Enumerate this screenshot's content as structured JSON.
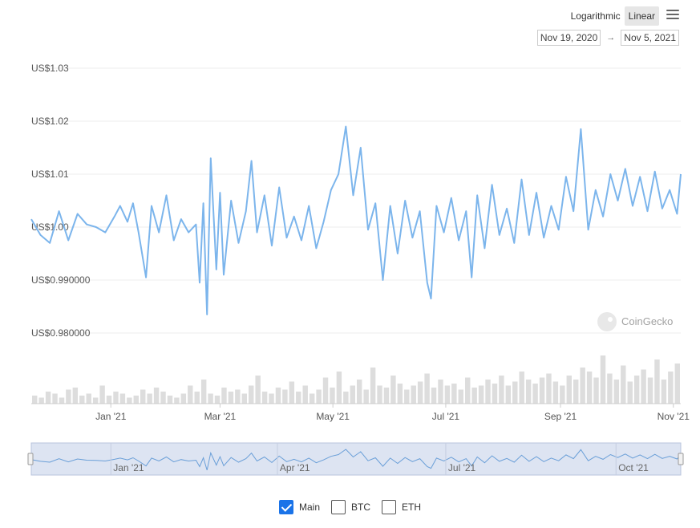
{
  "toolbar": {
    "scale_log_label": "Logarithmic",
    "scale_linear_label": "Linear",
    "active_scale": "linear",
    "menu_icon": "hamburger-menu-icon",
    "date_from": "Nov 19, 2020",
    "date_arrow": "→",
    "date_to": "Nov 5, 2021"
  },
  "watermark": "CoinGecko",
  "legend": [
    {
      "label": "Main",
      "checked": true
    },
    {
      "label": "BTC",
      "checked": false
    },
    {
      "label": "ETH",
      "checked": false
    }
  ],
  "chart_data": {
    "type": "line",
    "x_range": [
      "2020-11-19",
      "2021-11-05"
    ],
    "y_ticks": [
      {
        "value": 0.98,
        "label": "US$0.980000"
      },
      {
        "value": 0.99,
        "label": "US$0.990000"
      },
      {
        "value": 1.0,
        "label": "US$1.00"
      },
      {
        "value": 1.01,
        "label": "US$1.01"
      },
      {
        "value": 1.02,
        "label": "US$1.02"
      },
      {
        "value": 1.03,
        "label": "US$1.03"
      }
    ],
    "ylim": [
      0.98,
      1.03
    ],
    "x_ticks": [
      {
        "date": "2021-01-01",
        "label": "Jan '21"
      },
      {
        "date": "2021-03-01",
        "label": "Mar '21"
      },
      {
        "date": "2021-05-01",
        "label": "May '21"
      },
      {
        "date": "2021-07-01",
        "label": "Jul '21"
      },
      {
        "date": "2021-09-01",
        "label": "Sep '21"
      },
      {
        "date": "2021-11-01",
        "label": "Nov '21"
      }
    ],
    "navigator_ticks": [
      {
        "date": "2021-01-01",
        "label": "Jan '21"
      },
      {
        "date": "2021-04-01",
        "label": "Apr '21"
      },
      {
        "date": "2021-07-01",
        "label": "Jul '21"
      },
      {
        "date": "2021-10-01",
        "label": "Oct '21"
      }
    ],
    "series": [
      {
        "color": "#7cb5ec",
        "points": [
          [
            "2020-11-19",
            1.0015
          ],
          [
            "2020-11-24",
            0.9985
          ],
          [
            "2020-11-29",
            0.997
          ],
          [
            "2020-12-04",
            1.003
          ],
          [
            "2020-12-09",
            0.9975
          ],
          [
            "2020-12-14",
            1.0025
          ],
          [
            "2020-12-19",
            1.0005
          ],
          [
            "2020-12-24",
            1.0
          ],
          [
            "2020-12-29",
            0.999
          ],
          [
            "2021-01-03",
            1.002
          ],
          [
            "2021-01-06",
            1.004
          ],
          [
            "2021-01-10",
            1.001
          ],
          [
            "2021-01-13",
            1.0045
          ],
          [
            "2021-01-16",
            0.999
          ],
          [
            "2021-01-20",
            0.9905
          ],
          [
            "2021-01-23",
            1.004
          ],
          [
            "2021-01-27",
            0.999
          ],
          [
            "2021-01-31",
            1.006
          ],
          [
            "2021-02-04",
            0.9975
          ],
          [
            "2021-02-08",
            1.0015
          ],
          [
            "2021-02-12",
            0.999
          ],
          [
            "2021-02-16",
            1.0005
          ],
          [
            "2021-02-18",
            0.9895
          ],
          [
            "2021-02-20",
            1.0045
          ],
          [
            "2021-02-22",
            0.9835
          ],
          [
            "2021-02-24",
            1.013
          ],
          [
            "2021-02-27",
            0.992
          ],
          [
            "2021-03-01",
            1.0065
          ],
          [
            "2021-03-03",
            0.991
          ],
          [
            "2021-03-07",
            1.005
          ],
          [
            "2021-03-11",
            0.997
          ],
          [
            "2021-03-15",
            1.003
          ],
          [
            "2021-03-18",
            1.0125
          ],
          [
            "2021-03-21",
            0.999
          ],
          [
            "2021-03-25",
            1.006
          ],
          [
            "2021-03-29",
            0.9965
          ],
          [
            "2021-04-02",
            1.0075
          ],
          [
            "2021-04-06",
            0.998
          ],
          [
            "2021-04-10",
            1.002
          ],
          [
            "2021-04-14",
            0.9975
          ],
          [
            "2021-04-18",
            1.004
          ],
          [
            "2021-04-22",
            0.996
          ],
          [
            "2021-04-26",
            1.001
          ],
          [
            "2021-04-30",
            1.007
          ],
          [
            "2021-05-04",
            1.01
          ],
          [
            "2021-05-08",
            1.019
          ],
          [
            "2021-05-12",
            1.006
          ],
          [
            "2021-05-16",
            1.015
          ],
          [
            "2021-05-20",
            0.9995
          ],
          [
            "2021-05-24",
            1.0045
          ],
          [
            "2021-05-28",
            0.99
          ],
          [
            "2021-06-01",
            1.004
          ],
          [
            "2021-06-05",
            0.995
          ],
          [
            "2021-06-09",
            1.005
          ],
          [
            "2021-06-13",
            0.998
          ],
          [
            "2021-06-17",
            1.003
          ],
          [
            "2021-06-21",
            0.9895
          ],
          [
            "2021-06-23",
            0.9865
          ],
          [
            "2021-06-26",
            1.004
          ],
          [
            "2021-06-30",
            0.999
          ],
          [
            "2021-07-04",
            1.0055
          ],
          [
            "2021-07-08",
            0.9975
          ],
          [
            "2021-07-12",
            1.003
          ],
          [
            "2021-07-15",
            0.9905
          ],
          [
            "2021-07-18",
            1.006
          ],
          [
            "2021-07-22",
            0.996
          ],
          [
            "2021-07-26",
            1.008
          ],
          [
            "2021-07-30",
            0.9985
          ],
          [
            "2021-08-03",
            1.0035
          ],
          [
            "2021-08-07",
            0.997
          ],
          [
            "2021-08-11",
            1.009
          ],
          [
            "2021-08-15",
            0.9985
          ],
          [
            "2021-08-19",
            1.0065
          ],
          [
            "2021-08-23",
            0.998
          ],
          [
            "2021-08-27",
            1.004
          ],
          [
            "2021-08-31",
            0.9995
          ],
          [
            "2021-09-04",
            1.0095
          ],
          [
            "2021-09-08",
            1.003
          ],
          [
            "2021-09-12",
            1.0185
          ],
          [
            "2021-09-16",
            0.9995
          ],
          [
            "2021-09-20",
            1.007
          ],
          [
            "2021-09-24",
            1.002
          ],
          [
            "2021-09-28",
            1.01
          ],
          [
            "2021-10-02",
            1.005
          ],
          [
            "2021-10-06",
            1.011
          ],
          [
            "2021-10-10",
            1.004
          ],
          [
            "2021-10-14",
            1.0095
          ],
          [
            "2021-10-18",
            1.003
          ],
          [
            "2021-10-22",
            1.0105
          ],
          [
            "2021-10-26",
            1.0035
          ],
          [
            "2021-10-30",
            1.007
          ],
          [
            "2021-11-03",
            1.0025
          ],
          [
            "2021-11-05",
            1.01
          ]
        ]
      }
    ],
    "volume": {
      "color": "#dddddd",
      "samples": [
        4,
        3,
        6,
        5,
        3,
        7,
        8,
        4,
        5,
        3,
        9,
        4,
        6,
        5,
        3,
        4,
        7,
        5,
        8,
        6,
        4,
        3,
        5,
        9,
        6,
        12,
        5,
        4,
        8,
        6,
        7,
        5,
        9,
        14,
        6,
        5,
        8,
        7,
        11,
        6,
        9,
        5,
        7,
        13,
        8,
        16,
        6,
        9,
        12,
        7,
        18,
        9,
        8,
        14,
        10,
        7,
        9,
        11,
        15,
        8,
        12,
        9,
        10,
        7,
        13,
        8,
        9,
        12,
        10,
        14,
        9,
        11,
        16,
        12,
        10,
        13,
        15,
        11,
        9,
        14,
        12,
        18,
        16,
        13,
        24,
        15,
        12,
        19,
        11,
        14,
        17,
        13,
        22,
        12,
        16,
        20
      ]
    }
  }
}
